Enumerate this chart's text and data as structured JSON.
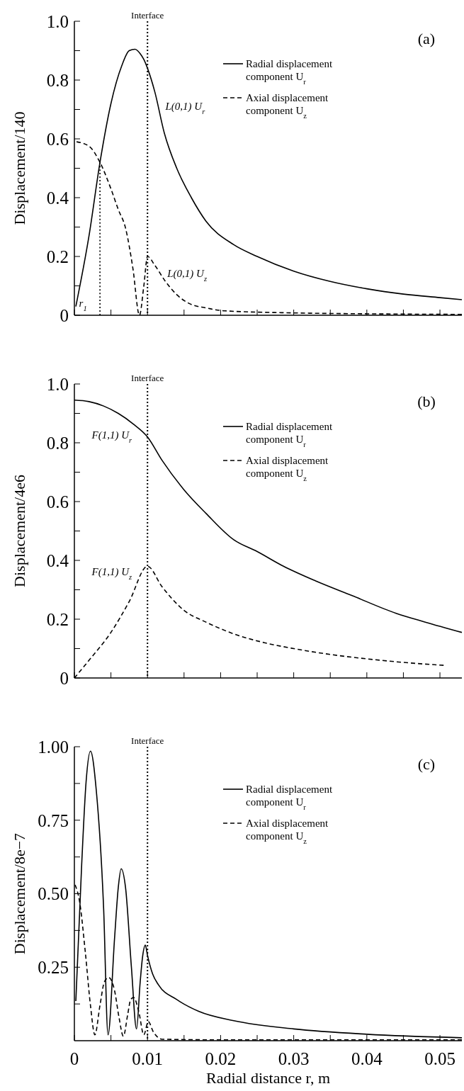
{
  "chart_data": [
    {
      "type": "line",
      "title": "(a)",
      "ylabel": "Displacement/140",
      "xlim": [
        0,
        0.053
      ],
      "ylim": [
        0,
        1
      ],
      "tick_labels": "y",
      "legend": "top right",
      "xticks": [
        {
          "value": 0,
          "label": null
        },
        {
          "value": 0.005,
          "label": null
        },
        {
          "value": 0.01,
          "label": null
        },
        {
          "value": 0.015,
          "label": null
        },
        {
          "value": 0.02,
          "label": null
        },
        {
          "value": 0.025,
          "label": null
        },
        {
          "value": 0.03,
          "label": null
        },
        {
          "value": 0.035,
          "label": null
        },
        {
          "value": 0.04,
          "label": null
        },
        {
          "value": 0.045,
          "label": null
        },
        {
          "value": 0.05,
          "label": null
        }
      ],
      "yticks": [
        0,
        {
          "value": 0.1,
          "label": null
        },
        0.2,
        {
          "value": 0.3,
          "label": null
        },
        0.4,
        {
          "value": 0.5,
          "label": null
        },
        0.6,
        {
          "value": 0.7,
          "label": null
        },
        0.8,
        {
          "value": 0.9,
          "label": null
        },
        {
          "value": 1,
          "label": "1.0"
        }
      ],
      "ref_lines": [
        {
          "axis": "x",
          "value": 0.01,
          "label": "Interface",
          "line_style": "dotted"
        }
      ],
      "annotations": [
        "L(0,1) U$_{r}$",
        "L(0,1) U$_{z}$",
        "r$_{1}$"
      ],
      "series": [
        {
          "name": "Radial displacement component U$_{r}$",
          "color": "#000000",
          "line_style": "solid",
          "x": [
            0.0002,
            0.002,
            0.0035,
            0.005,
            0.0065,
            0.0075,
            0.0083,
            0.009,
            0.0095,
            0.01,
            0.011,
            0.0123,
            0.014,
            0.016,
            0.018,
            0.0218,
            0.025,
            0.03,
            0.035,
            0.04,
            0.045,
            0.05,
            0.053
          ],
          "values": [
            0.03,
            0.27,
            0.52,
            0.72,
            0.85,
            0.9,
            0.905,
            0.89,
            0.87,
            0.84,
            0.76,
            0.62,
            0.5,
            0.4,
            0.32,
            0.24,
            0.2,
            0.15,
            0.115,
            0.09,
            0.072,
            0.06,
            0.053
          ]
        },
        {
          "name": "Axial displacement component U$_{z}$",
          "color": "#000000",
          "line_style": "dashed",
          "x": [
            0.0003,
            0.002,
            0.0035,
            0.005,
            0.006,
            0.007,
            0.008,
            0.0089,
            0.0095,
            0.01,
            0.011,
            0.0124,
            0.014,
            0.0157,
            0.018,
            0.0206,
            0.03,
            0.04,
            0.053
          ],
          "values": [
            0.59,
            0.575,
            0.52,
            0.43,
            0.36,
            0.296,
            0.16,
            0,
            0.1,
            0.2,
            0.17,
            0.117,
            0.07,
            0.04,
            0.025,
            0.015,
            0.008,
            0.005,
            0.003
          ]
        },
        {
          "color": "#000000",
          "line_style": "dotted",
          "x": [
            0.0035,
            0.0035
          ],
          "values": [
            0,
            0.52
          ]
        }
      ]
    },
    {
      "type": "line",
      "title": "(b)",
      "ylabel": "Displacement/4e6",
      "xlim": [
        0,
        0.053
      ],
      "ylim": [
        0,
        1
      ],
      "tick_labels": "y",
      "legend": "top right",
      "xticks": [
        {
          "value": 0,
          "label": null
        },
        {
          "value": 0.005,
          "label": null
        },
        {
          "value": 0.01,
          "label": null
        },
        {
          "value": 0.015,
          "label": null
        },
        {
          "value": 0.02,
          "label": null
        },
        {
          "value": 0.025,
          "label": null
        },
        {
          "value": 0.03,
          "label": null
        },
        {
          "value": 0.035,
          "label": null
        },
        {
          "value": 0.04,
          "label": null
        },
        {
          "value": 0.045,
          "label": null
        },
        {
          "value": 0.05,
          "label": null
        }
      ],
      "yticks": [
        0,
        {
          "value": 0.1,
          "label": null
        },
        0.2,
        {
          "value": 0.3,
          "label": null
        },
        0.4,
        {
          "value": 0.5,
          "label": null
        },
        0.6,
        {
          "value": 0.7,
          "label": null
        },
        0.8,
        {
          "value": 0.9,
          "label": null
        },
        {
          "value": 1,
          "label": "1.0"
        }
      ],
      "ref_lines": [
        {
          "axis": "x",
          "value": 0.01,
          "label": "Interface",
          "line_style": "dotted"
        }
      ],
      "annotations": [
        "F(1,1) U$_{r}$",
        "F(1,1) U$_{z}$"
      ],
      "series": [
        {
          "name": "Radial displacement component U$_{r}$",
          "color": "#000000",
          "line_style": "solid",
          "x": [
            0,
            0.002,
            0.004,
            0.006,
            0.008,
            0.01,
            0.012,
            0.015,
            0.018,
            0.0218,
            0.025,
            0.0286,
            0.033,
            0.038,
            0.044,
            0.048,
            0.053
          ],
          "values": [
            0.945,
            0.94,
            0.925,
            0.9,
            0.865,
            0.82,
            0.74,
            0.64,
            0.56,
            0.47,
            0.43,
            0.38,
            0.33,
            0.28,
            0.22,
            0.19,
            0.155
          ]
        },
        {
          "name": "Axial displacement component U$_{z}$",
          "color": "#000000",
          "line_style": "dashed",
          "x": [
            0,
            0.002,
            0.005,
            0.0075,
            0.01,
            0.012,
            0.015,
            0.018,
            0.0218,
            0.026,
            0.03,
            0.035,
            0.04,
            0.045,
            0.0505
          ],
          "values": [
            0,
            0.06,
            0.155,
            0.26,
            0.38,
            0.31,
            0.23,
            0.19,
            0.15,
            0.12,
            0.1,
            0.08,
            0.065,
            0.053,
            0.043
          ]
        }
      ]
    },
    {
      "type": "line",
      "title": "(c)",
      "xlabel": "Radial distance r, m",
      "ylabel": "Displacement/8e−7",
      "xlim": [
        0,
        0.053
      ],
      "ylim": [
        0,
        1
      ],
      "legend": "top right",
      "xticks": [
        0,
        {
          "value": 0.005,
          "label": null
        },
        0.01,
        {
          "value": 0.015,
          "label": null
        },
        0.02,
        {
          "value": 0.025,
          "label": null
        },
        0.03,
        {
          "value": 0.035,
          "label": null
        },
        0.04,
        {
          "value": 0.045,
          "label": null
        },
        0.05
      ],
      "yticks": [
        {
          "value": 0.125,
          "label": null
        },
        {
          "value": 0.25,
          "label": "0.25"
        },
        {
          "value": 0.375,
          "label": null
        },
        {
          "value": 0.5,
          "label": "0.50"
        },
        {
          "value": 0.625,
          "label": null
        },
        {
          "value": 0.75,
          "label": "0.75"
        },
        {
          "value": 0.875,
          "label": null
        },
        {
          "value": 1,
          "label": "1.00"
        }
      ],
      "ref_lines": [
        {
          "axis": "x",
          "value": 0.01,
          "label": "Interface",
          "line_style": "dotted"
        }
      ],
      "series": [
        {
          "name": "Radial displacement component U$_{r}$",
          "color": "#000000",
          "line_style": "solid",
          "x": [
            0.0002,
            0.001,
            0.0016,
            0.0022,
            0.003,
            0.004,
            0.0046,
            0.0055,
            0.006,
            0.0064,
            0.007,
            0.0078,
            0.0085,
            0.009,
            0.0093,
            0.0097,
            0.01,
            0.0107,
            0.0115,
            0.014,
            0.017,
            0.0218,
            0.03,
            0.04,
            0.053
          ],
          "values": [
            0.135,
            0.6,
            0.88,
            0.985,
            0.85,
            0.45,
            0.02,
            0.35,
            0.52,
            0.585,
            0.52,
            0.25,
            0.04,
            0.2,
            0.28,
            0.325,
            0.29,
            0.227,
            0.19,
            0.14,
            0.1,
            0.068,
            0.04,
            0.022,
            0.01
          ]
        },
        {
          "name": "Axial displacement component U$_{z}$",
          "color": "#000000",
          "line_style": "dashed",
          "x": [
            0.0001,
            0.0007,
            0.0015,
            0.0022,
            0.0028,
            0.0035,
            0.0041,
            0.0047,
            0.0055,
            0.0061,
            0.0067,
            0.0073,
            0.0077,
            0.0081,
            0.0088,
            0.0095,
            0.0101,
            0.0108,
            0.012,
            0.02,
            0.053
          ],
          "values": [
            0.53,
            0.475,
            0.3,
            0.12,
            0.02,
            0.12,
            0.2,
            0.215,
            0.17,
            0.08,
            0.015,
            0.09,
            0.14,
            0.147,
            0.1,
            0.02,
            0.065,
            0.03,
            0.005,
            0.003,
            0.003
          ]
        }
      ]
    }
  ]
}
